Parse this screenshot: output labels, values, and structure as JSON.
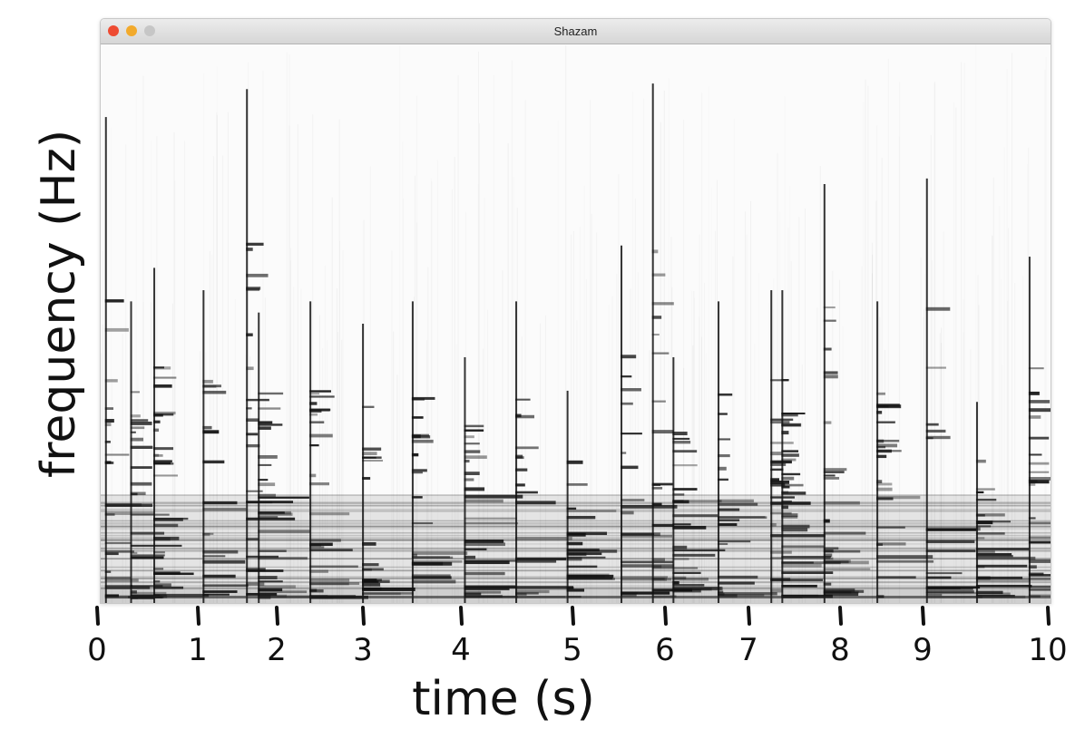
{
  "window": {
    "title": "Shazam",
    "controls": [
      {
        "name": "close",
        "color": "#ee4b32"
      },
      {
        "name": "minimize",
        "color": "#f2aa2c"
      },
      {
        "name": "zoom",
        "color": "#c6c6c6"
      }
    ]
  },
  "chart_data": {
    "type": "heatmap",
    "subtype": "spectrogram",
    "xlabel": "time (s)",
    "ylabel": "frequency (Hz)",
    "xlim": [
      0,
      10
    ],
    "x_ticks": [
      0,
      1,
      2,
      3,
      4,
      5,
      6,
      7,
      8,
      9,
      10
    ],
    "x_tick_labels": [
      "0",
      "1",
      "2",
      "3",
      "4",
      "5",
      "6",
      "7",
      "8",
      "9",
      "10"
    ],
    "colormap": "grayscale (dark = high energy)",
    "grid": false,
    "onsets": [
      {
        "t": 0.07,
        "peak": 0.87
      },
      {
        "t": 0.32,
        "peak": 0.54
      },
      {
        "t": 0.55,
        "peak": 0.6
      },
      {
        "t": 1.05,
        "peak": 0.56
      },
      {
        "t": 1.6,
        "peak": 0.92
      },
      {
        "t": 1.75,
        "peak": 0.52
      },
      {
        "t": 2.37,
        "peak": 0.54
      },
      {
        "t": 2.98,
        "peak": 0.5
      },
      {
        "t": 3.49,
        "peak": 0.54
      },
      {
        "t": 4.02,
        "peak": 0.44
      },
      {
        "t": 4.48,
        "peak": 0.54
      },
      {
        "t": 4.94,
        "peak": 0.38
      },
      {
        "t": 5.51,
        "peak": 0.64
      },
      {
        "t": 5.85,
        "peak": 0.93
      },
      {
        "t": 6.08,
        "peak": 0.44
      },
      {
        "t": 6.62,
        "peak": 0.54
      },
      {
        "t": 7.23,
        "peak": 0.56
      },
      {
        "t": 7.35,
        "peak": 0.56
      },
      {
        "t": 7.81,
        "peak": 0.75
      },
      {
        "t": 8.43,
        "peak": 0.54
      },
      {
        "t": 9.02,
        "peak": 0.76
      },
      {
        "t": 9.42,
        "peak": 0.36
      },
      {
        "t": 9.84,
        "peak": 0.62
      }
    ]
  }
}
